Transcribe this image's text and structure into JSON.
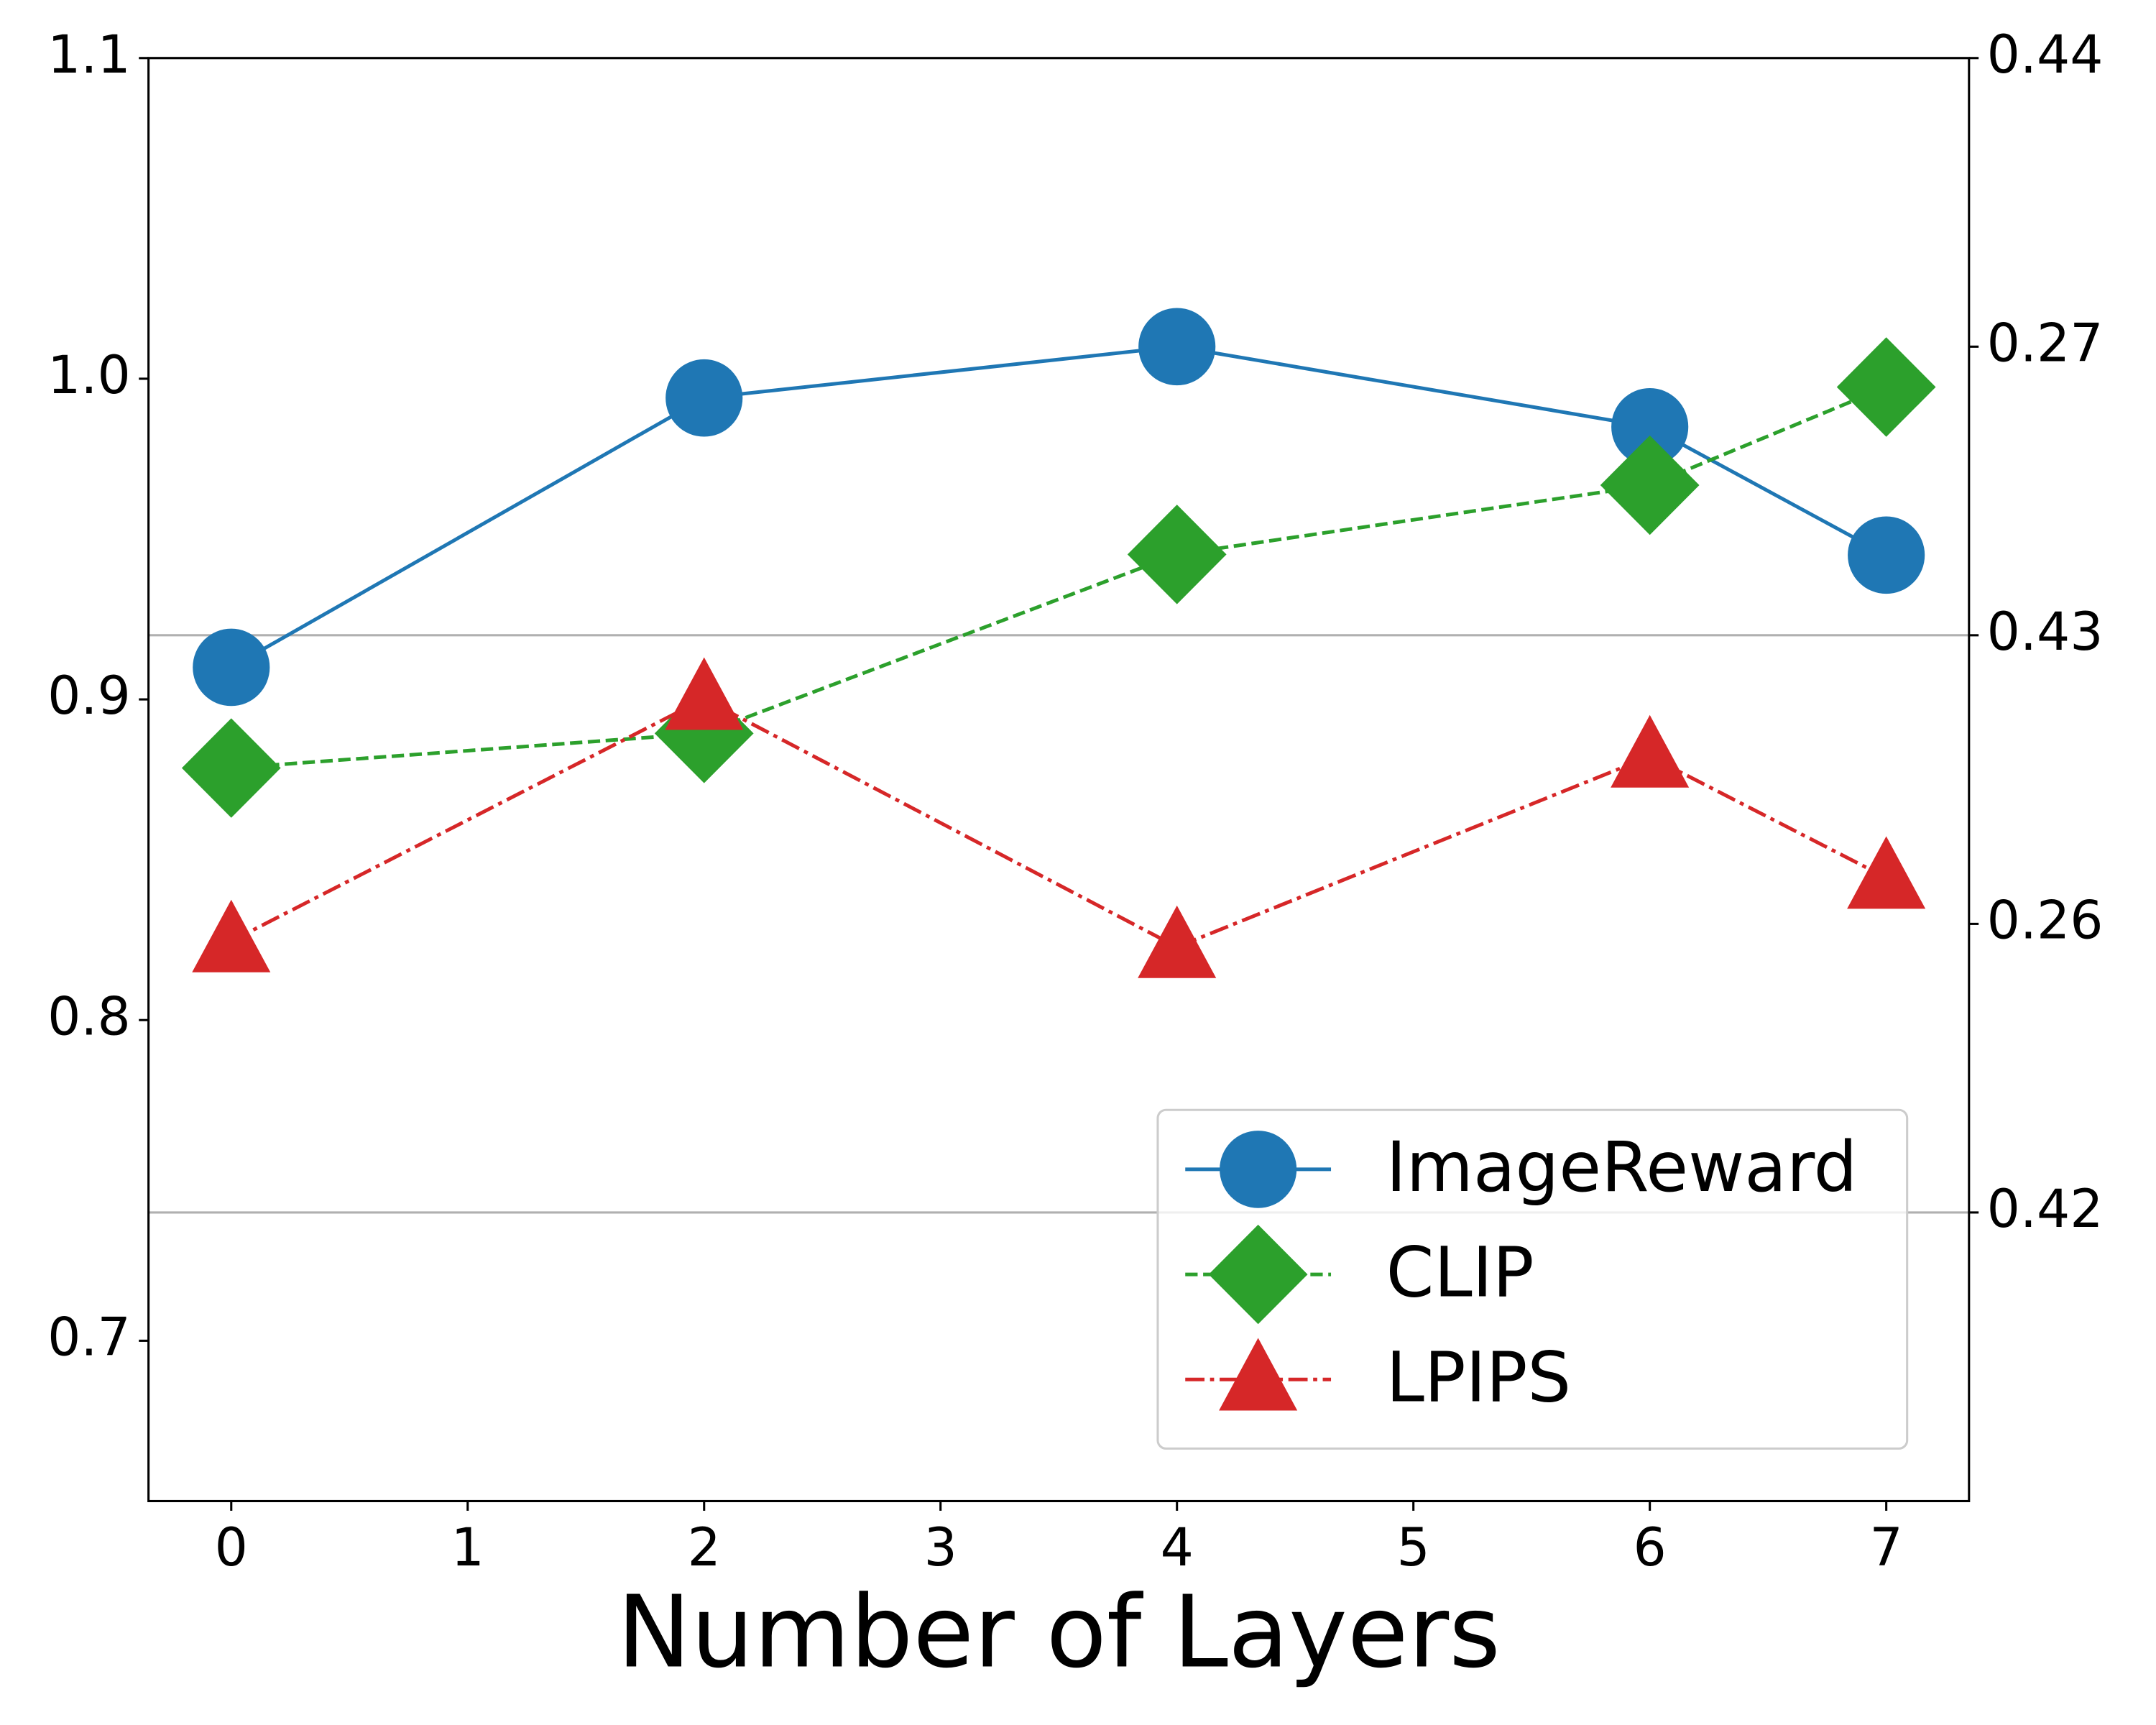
{
  "chart_data": {
    "type": "line",
    "xlabel": "Number of Layers",
    "x": [
      0,
      2,
      4,
      6,
      7
    ],
    "xlim": [
      -0.35,
      7.35
    ],
    "xticks": [
      0,
      1,
      2,
      3,
      4,
      5,
      6,
      7
    ],
    "ylim": [
      0.65,
      1.1
    ],
    "yticks": [
      0.7,
      0.8,
      0.9,
      {
        "value": 1.0,
        "label": "1.0"
      },
      1.1
    ],
    "y2lim": [
      0.415,
      0.44
    ],
    "y2ticks": [
      0.42,
      0.43,
      0.44
    ],
    "y3lim": [
      0.25,
      0.275
    ],
    "y3ticks": [
      0.26,
      0.27
    ],
    "grid": "y2",
    "legend": "lower right",
    "series": [
      {
        "name": "ImageReward",
        "color": "#1f77b4",
        "marker": "circle",
        "linestyle": "solid",
        "axis": "y",
        "values": [
          0.91,
          0.994,
          1.01,
          0.985,
          0.945
        ]
      },
      {
        "name": "CLIP",
        "color": "#2ca02c",
        "marker": "diamond",
        "linestyle": "dashed",
        "axis": "y2",
        "values": [
          0.4277,
          0.4283,
          0.4314,
          0.4326,
          0.4343
        ]
      },
      {
        "name": "LPIPS",
        "color": "#d62728",
        "marker": "triangle",
        "linestyle": "dashdot",
        "axis": "y3",
        "values": [
          0.2597,
          0.2639,
          0.2596,
          0.2629,
          0.2608
        ]
      }
    ]
  }
}
